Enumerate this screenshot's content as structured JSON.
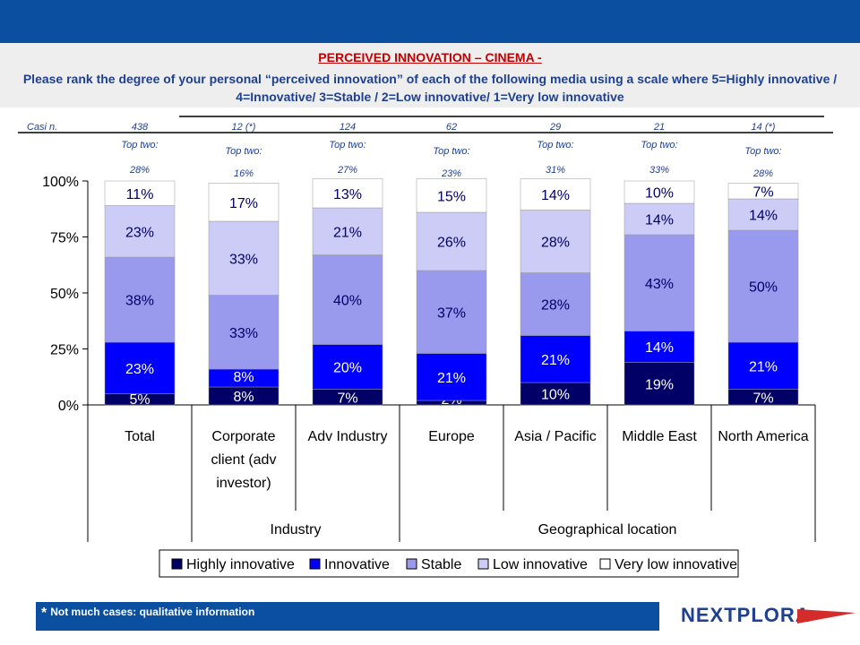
{
  "header": {
    "title": "PERCEIVED INNOVATION – CINEMA -",
    "subtitle": "Please rank the degree of your personal “perceived innovation” of each of the following media using a scale where  5=Highly innovative / 4=Innovative/ 3=Stable / 2=Low innovative/ 1=Very low innovative"
  },
  "footer": {
    "star": "*",
    "note": "Not much cases: qualitative information",
    "logo": "NEXTPLORA"
  },
  "colors": {
    "highly_innovative": "#000066",
    "innovative": "#0000ff",
    "stable": "#9999ee",
    "low_innovative": "#ccccf7",
    "very_low_innovative": "#ffffff",
    "brand_blue": "#0a4fa0",
    "title_red": "#c00000"
  },
  "chart_data": {
    "type": "bar",
    "stacked": true,
    "categories": [
      "Total",
      "Corporate client (adv investor)",
      "Adv Industry",
      "Europe",
      "Asia / Pacific",
      "Middle East",
      "North America"
    ],
    "category_lines": [
      [
        "Total"
      ],
      [
        "Corporate",
        "client (adv",
        "investor)"
      ],
      [
        "Adv Industry"
      ],
      [
        "Europe"
      ],
      [
        "Asia / Pacific"
      ],
      [
        "Middle East"
      ],
      [
        "North America"
      ]
    ],
    "groups": [
      {
        "label": "Industry",
        "from": 1,
        "to": 2
      },
      {
        "label": "Geographical location",
        "from": 3,
        "to": 6
      }
    ],
    "cases_label": "Casi n.",
    "cases": [
      "438",
      "12 (*)",
      "124",
      "62",
      "29",
      "21",
      "14 (*)"
    ],
    "top_two_label": "Top two:",
    "top_two": [
      "28%",
      "16%",
      "27%",
      "23%",
      "31%",
      "33%",
      "28%"
    ],
    "series": [
      {
        "name": "Highly innovative",
        "values": [
          5,
          8,
          7,
          2,
          10,
          19,
          7
        ],
        "labels": [
          "5%",
          "8%",
          "7%",
          "2%",
          "10%",
          "19%",
          "7%"
        ]
      },
      {
        "name": "Innovative",
        "values": [
          23,
          8,
          20,
          21,
          21,
          14,
          21
        ],
        "labels": [
          "23%",
          "8%",
          "20%",
          "21%",
          "21%",
          "14%",
          "21%"
        ]
      },
      {
        "name": "Stable",
        "values": [
          38,
          33,
          40,
          37,
          28,
          43,
          50
        ],
        "labels": [
          "38%",
          "33%",
          "40%",
          "37%",
          "28%",
          "43%",
          "50%"
        ]
      },
      {
        "name": "Low innovative",
        "values": [
          23,
          33,
          21,
          26,
          28,
          14,
          14
        ],
        "labels": [
          "23%",
          "33%",
          "21%",
          "26%",
          "28%",
          "14%",
          "14%"
        ]
      },
      {
        "name": "Very low innovative",
        "values": [
          11,
          17,
          13,
          15,
          14,
          10,
          7
        ],
        "labels": [
          "11%",
          "17%",
          "13%",
          "15%",
          "14%",
          "10%",
          "7%"
        ]
      }
    ],
    "ylim": [
      0,
      100
    ],
    "yticks": [
      0,
      25,
      50,
      75,
      100
    ],
    "ytick_labels": [
      "0%",
      "25%",
      "50%",
      "75%",
      "100%"
    ],
    "legend_position": "bottom"
  }
}
